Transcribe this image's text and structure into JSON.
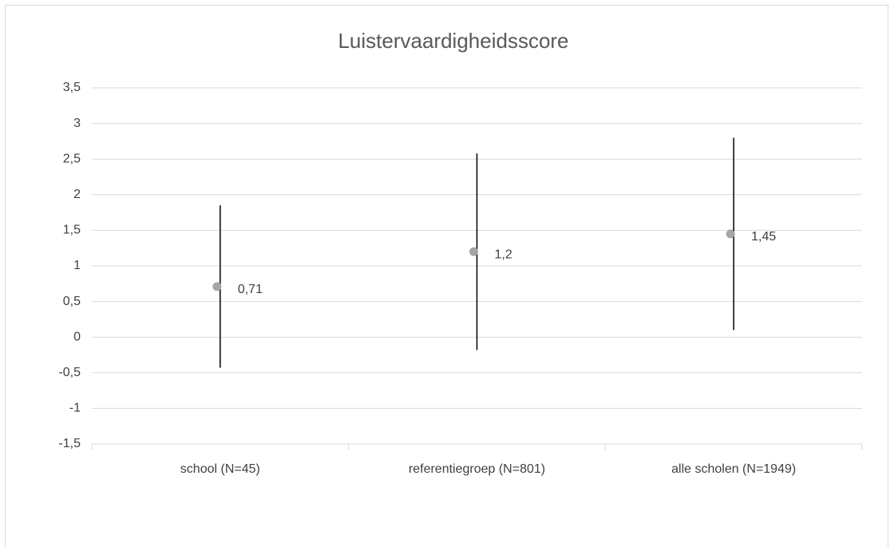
{
  "chart_data": {
    "type": "errorbar",
    "title": "Luistervaardigheidsscore",
    "categories": [
      "school (N=45)",
      "referentiegroep (N=801)",
      "alle scholen (N=1949)"
    ],
    "values": [
      0.71,
      1.2,
      1.45
    ],
    "value_labels": [
      "0,71",
      "1,2",
      "1,45"
    ],
    "errors": [
      1.14,
      1.38,
      1.35
    ],
    "color": "#a5a5a5",
    "error_color": "#000000",
    "ylim": [
      -1.5,
      3.5
    ],
    "yticks": [
      {
        "value": -1.5,
        "label": "-1,5"
      },
      -1,
      {
        "value": -0.5,
        "label": "-0,5"
      },
      0,
      {
        "value": 0.5,
        "label": "0,5"
      },
      1,
      {
        "value": 1.5,
        "label": "1,5"
      },
      2,
      {
        "value": 2.5,
        "label": "2,5"
      },
      3,
      {
        "value": 3.5,
        "label": "3,5"
      }
    ],
    "grid": true
  }
}
